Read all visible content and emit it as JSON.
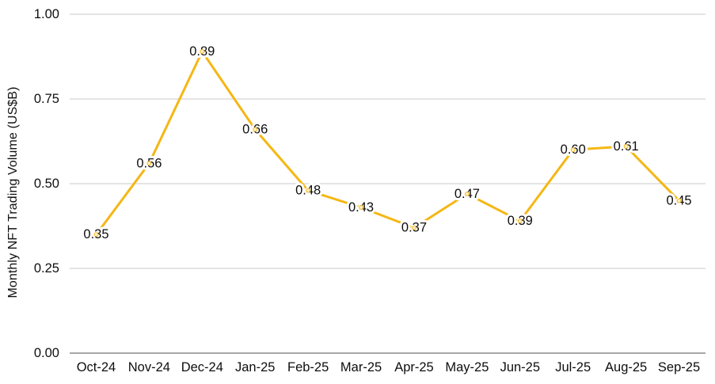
{
  "chart_data": {
    "type": "line",
    "title": "",
    "ylabel": "Monthly NFT Trading Volume (US$B)",
    "xlabel": "",
    "categories": [
      "Oct-24",
      "Nov-24",
      "Dec-24",
      "Jan-25",
      "Feb-25",
      "Mar-25",
      "Apr-25",
      "May-25",
      "Jun-25",
      "Jul-25",
      "Aug-25",
      "Sep-25"
    ],
    "values": [
      0.35,
      0.56,
      0.89,
      0.66,
      0.48,
      0.43,
      0.37,
      0.47,
      0.39,
      0.6,
      0.61,
      0.45
    ],
    "point_labels": [
      "0.35",
      "0.56",
      "0.89",
      "0.66",
      "0.48",
      "0.43",
      "0.37",
      "0.47",
      "0.39",
      "0.60",
      "0.61",
      "0.45"
    ],
    "ylim": [
      0,
      1
    ],
    "yticks": [
      0,
      0.25,
      0.5,
      0.75,
      1
    ],
    "ytick_labels": [
      "0.00",
      "0.25",
      "0.50",
      "0.75",
      "1.00"
    ],
    "grid": true,
    "legend": "none",
    "colors": {
      "line": "#F5B715",
      "point_fill": "#FCF0CB",
      "point_stroke": "#F5B715",
      "text": "#0e0e0e",
      "axis_line": "#8a8a8a",
      "gridline": "#dcdcdc",
      "label_halo": "#ffffff",
      "background": "#ffffff"
    }
  }
}
